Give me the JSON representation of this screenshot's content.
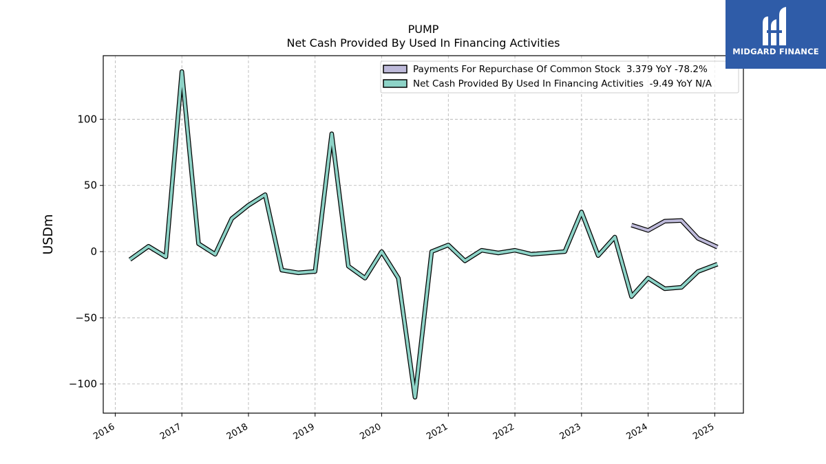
{
  "chart_data": {
    "type": "line",
    "title": "PUMP",
    "subtitle": "Net Cash Provided By Used In Financing Activities",
    "ylabel": "USDm",
    "xlabel": "",
    "ylim": [
      -122,
      148
    ],
    "xlim": [
      2015.82,
      2025.43
    ],
    "yticks": [
      -100,
      -50,
      0,
      50,
      100
    ],
    "yticklabels": [
      "−100",
      "−50",
      "0",
      "50",
      "100"
    ],
    "xticks": [
      2016,
      2017,
      2018,
      2019,
      2020,
      2021,
      2022,
      2023,
      2024,
      2025
    ],
    "xticklabels": [
      "2016",
      "2017",
      "2018",
      "2019",
      "2020",
      "2021",
      "2022",
      "2023",
      "2024",
      "2025"
    ],
    "grid": true,
    "legend_position": "top-right",
    "series": [
      {
        "name": "Payments For Repurchase Of Common Stock  3.379 YoY -78.2%",
        "color": "#bebada",
        "x": [
          2023.75,
          2024.0,
          2024.25,
          2024.5,
          2024.75,
          2025.04
        ],
        "y": [
          20,
          16,
          23,
          23.5,
          10,
          3.4
        ]
      },
      {
        "name": "Net Cash Provided By Used In Financing Activities  -9.49 YoY N/A",
        "color": "#8dd3c7",
        "x": [
          2016.22,
          2016.5,
          2016.76,
          2017.0,
          2017.25,
          2017.5,
          2017.75,
          2018.0,
          2018.25,
          2018.5,
          2018.75,
          2019.0,
          2019.25,
          2019.5,
          2019.75,
          2020.0,
          2020.25,
          2020.5,
          2020.75,
          2021.0,
          2021.25,
          2021.5,
          2021.75,
          2022.0,
          2022.25,
          2022.5,
          2022.75,
          2023.0,
          2023.25,
          2023.5,
          2023.75,
          2024.0,
          2024.25,
          2024.5,
          2024.75,
          2025.04
        ],
        "y": [
          -6,
          4,
          -4,
          136,
          6,
          -2,
          25,
          35,
          43,
          -14,
          -16,
          -15,
          89,
          -11,
          -20,
          0,
          -20,
          -110,
          0,
          5,
          -7,
          1,
          -1,
          1,
          -2,
          -1,
          0,
          30,
          -3,
          11,
          -34,
          -20,
          -28,
          -27,
          -15,
          -9.49
        ]
      }
    ]
  },
  "logo": {
    "text": "MIDGARD FINANCE"
  }
}
